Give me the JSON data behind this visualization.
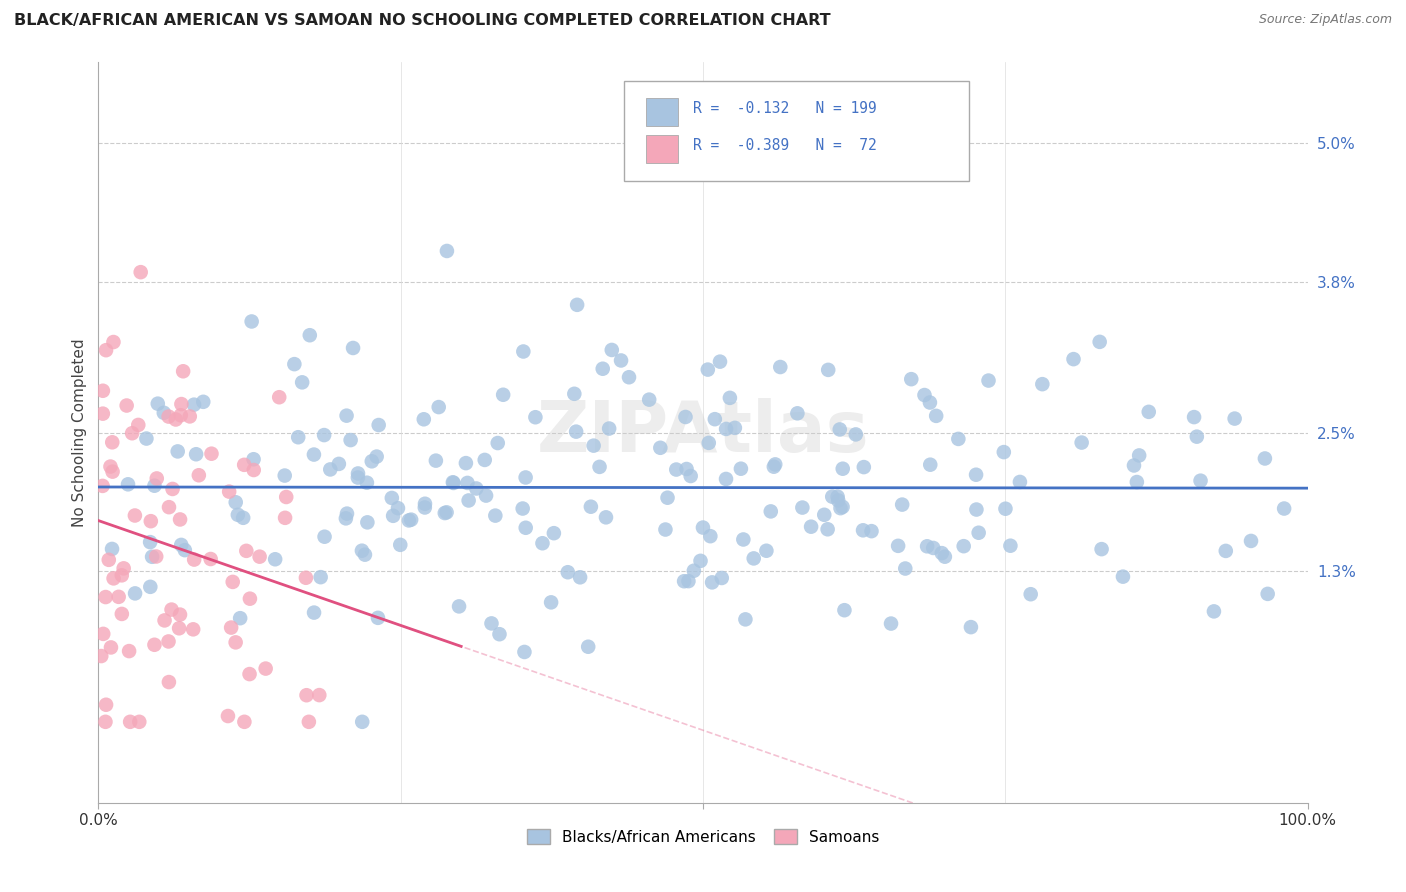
{
  "title": "BLACK/AFRICAN AMERICAN VS SAMOAN NO SCHOOLING COMPLETED CORRELATION CHART",
  "source": "Source: ZipAtlas.com",
  "ylabel": "No Schooling Completed",
  "ytick_labels": [
    "1.3%",
    "2.5%",
    "3.8%",
    "5.0%"
  ],
  "ytick_values": [
    0.013,
    0.025,
    0.038,
    0.05
  ],
  "blue_R": -0.132,
  "blue_N": 199,
  "pink_R": -0.389,
  "pink_N": 72,
  "blue_color": "#a8c4e0",
  "blue_line_color": "#4472c4",
  "pink_color": "#f4a7b9",
  "pink_line_color": "#e05080",
  "background_color": "#ffffff",
  "grid_color": "#cccccc",
  "title_color": "#222222",
  "source_color": "#777777",
  "legend_label_blue": "Blacks/African Americans",
  "legend_label_pink": "Samoans",
  "xlim": [
    0.0,
    1.0
  ],
  "ylim": [
    -0.007,
    0.057
  ]
}
